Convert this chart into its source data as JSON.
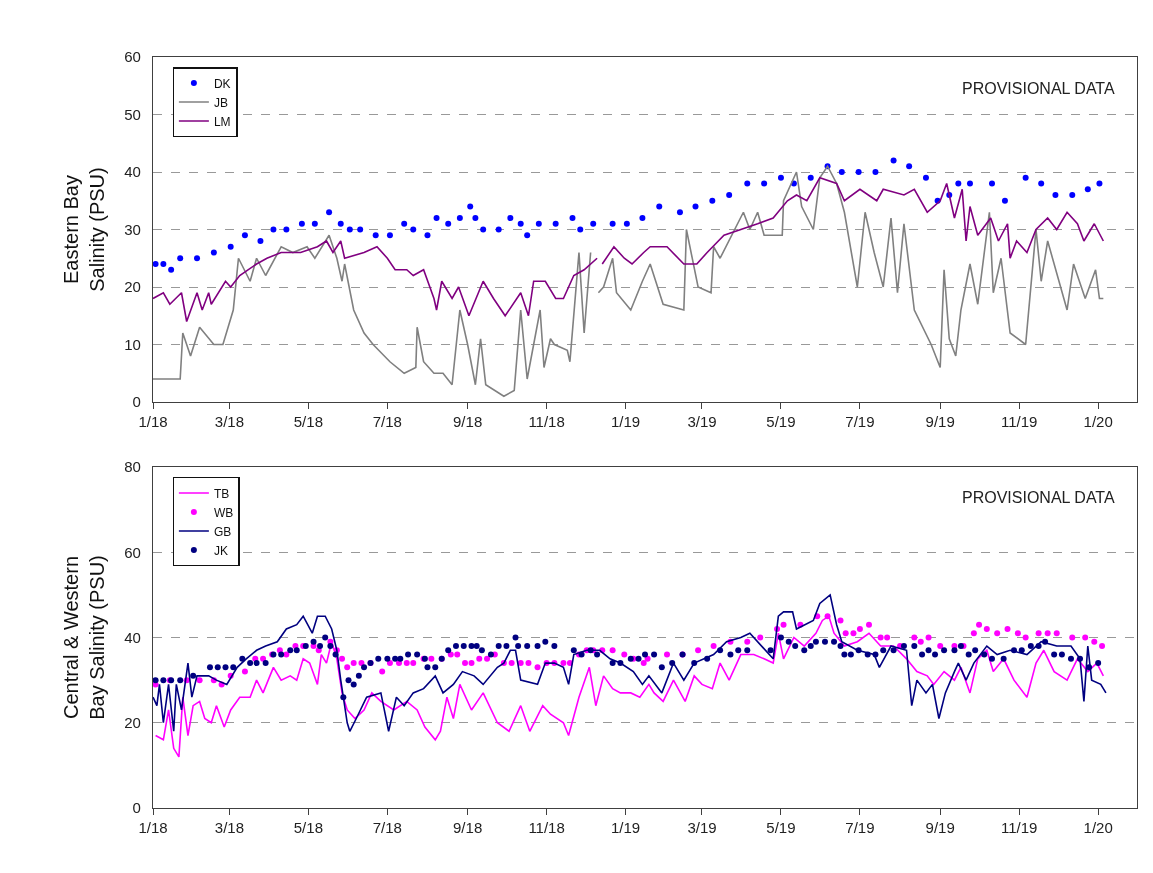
{
  "chart_data": [
    {
      "type": "line",
      "ylabel": "Eastern Bay\nSalinity (PSU)",
      "annotations": [
        "PROVISIONAL DATA"
      ],
      "legend": "top left",
      "grid": "y",
      "xlim": [
        "2018-01-01",
        "2020-01-31"
      ],
      "xticks": [
        {
          "value": "2018-01-01",
          "label": "1/18"
        },
        {
          "value": "2018-03-01",
          "label": "3/18"
        },
        {
          "value": "2018-05-01",
          "label": "5/18"
        },
        {
          "value": "2018-07-01",
          "label": "7/18"
        },
        {
          "value": "2018-09-01",
          "label": "9/18"
        },
        {
          "value": "2018-11-01",
          "label": "11/18"
        },
        {
          "value": "2019-01-01",
          "label": "1/19"
        },
        {
          "value": "2019-03-01",
          "label": "3/19"
        },
        {
          "value": "2019-05-01",
          "label": "5/19"
        },
        {
          "value": "2019-07-01",
          "label": "7/19"
        },
        {
          "value": "2019-09-01",
          "label": "9/19"
        },
        {
          "value": "2019-11-01",
          "label": "11/19"
        },
        {
          "value": "2020-01-01",
          "label": "1/20"
        }
      ],
      "ylim": [
        0,
        60
      ],
      "yticks": [
        0,
        10,
        20,
        30,
        40,
        50,
        60
      ],
      "series": [
        {
          "name": "DK",
          "type": "scatter",
          "marker": "circle",
          "color": "#0000ff",
          "x": [
            "2018-01-03",
            "2018-01-09",
            "2018-01-15",
            "2018-01-22",
            "2018-02-04",
            "2018-02-17",
            "2018-03-02",
            "2018-03-13",
            "2018-03-25",
            "2018-04-04",
            "2018-04-14",
            "2018-04-26",
            "2018-05-06",
            "2018-05-17",
            "2018-05-26",
            "2018-06-02",
            "2018-06-10",
            "2018-06-22",
            "2018-07-03",
            "2018-07-14",
            "2018-07-21",
            "2018-08-01",
            "2018-08-08",
            "2018-08-17",
            "2018-08-26",
            "2018-09-03",
            "2018-09-07",
            "2018-09-13",
            "2018-09-25",
            "2018-10-04",
            "2018-10-12",
            "2018-10-17",
            "2018-10-26",
            "2018-11-08",
            "2018-11-21",
            "2018-11-27",
            "2018-12-07",
            "2018-12-22",
            "2019-01-02",
            "2019-01-14",
            "2019-01-27",
            "2019-02-12",
            "2019-02-24",
            "2019-03-09",
            "2019-03-22",
            "2019-04-05",
            "2019-04-18",
            "2019-05-01",
            "2019-05-11",
            "2019-05-24",
            "2019-06-06",
            "2019-06-17",
            "2019-06-30",
            "2019-07-13",
            "2019-07-27",
            "2019-08-08",
            "2019-08-21",
            "2019-08-30",
            "2019-09-08",
            "2019-09-15",
            "2019-09-24",
            "2019-10-11",
            "2019-10-21",
            "2019-11-06",
            "2019-11-18",
            "2019-11-29",
            "2019-12-12",
            "2019-12-24",
            "2020-01-02"
          ],
          "values": [
            24,
            24,
            23,
            25,
            25,
            26,
            27,
            29,
            28,
            30,
            30,
            31,
            31,
            33,
            31,
            30,
            30,
            29,
            29,
            31,
            30,
            29,
            32,
            31,
            32,
            34,
            32,
            30,
            30,
            32,
            31,
            29,
            31,
            31,
            32,
            30,
            31,
            31,
            31,
            32,
            34,
            33,
            34,
            35,
            36,
            38,
            38,
            39,
            38,
            39,
            41,
            40,
            40,
            40,
            42,
            41,
            39,
            35,
            36,
            38,
            38,
            38,
            35,
            39,
            38,
            36,
            36,
            37,
            38
          ]
        },
        {
          "name": "JB",
          "color": "#808080",
          "x": [
            "2018-01-01",
            "2018-01-22",
            "2018-01-24",
            "2018-01-30",
            "2018-02-06",
            "2018-02-17",
            "2018-02-24",
            "2018-03-04",
            "2018-03-08",
            "2018-03-17",
            "2018-03-22",
            "2018-03-29",
            "2018-04-10",
            "2018-04-19",
            "2018-04-30",
            "2018-05-06",
            "2018-05-17",
            "2018-05-23",
            "2018-05-27",
            "2018-05-29",
            "2018-06-05",
            "2018-06-13",
            "2018-06-20",
            "2018-07-03",
            "2018-07-14",
            "2018-07-23",
            "2018-07-24",
            "2018-07-29",
            "2018-08-06",
            "2018-08-13",
            "2018-08-20",
            "2018-08-26",
            "2018-09-01",
            "2018-09-07",
            "2018-09-11",
            "2018-09-15",
            "2018-09-29",
            "2018-10-07",
            "2018-10-12",
            "2018-10-17",
            "2018-10-27",
            "2018-10-30",
            "2018-11-04",
            "2018-11-07",
            "2018-11-17",
            "2018-11-19",
            "2018-11-26",
            "2018-11-30",
            "2018-12-05",
            "2018-12-08",
            "2018-12-11",
            "2018-12-15",
            "2018-12-22",
            "2018-12-25",
            "2019-01-05",
            "2019-01-14",
            "2019-01-20",
            "2019-01-30",
            "2019-02-15",
            "2019-02-17",
            "2019-02-26",
            "2019-03-08",
            "2019-03-10",
            "2019-03-15",
            "2019-04-02",
            "2019-04-07",
            "2019-04-13",
            "2019-04-18",
            "2019-05-02",
            "2019-05-03",
            "2019-05-13",
            "2019-05-17",
            "2019-05-26",
            "2019-05-31",
            "2019-06-06",
            "2019-06-13",
            "2019-06-19",
            "2019-06-29",
            "2019-07-05",
            "2019-07-12",
            "2019-07-19",
            "2019-07-25",
            "2019-07-30",
            "2019-08-04",
            "2019-08-12",
            "2019-08-25",
            "2019-09-01",
            "2019-09-04",
            "2019-09-08",
            "2019-09-13",
            "2019-09-17",
            "2019-09-24",
            "2019-09-30",
            "2019-10-09",
            "2019-10-12",
            "2019-10-18",
            "2019-10-25",
            "2019-11-06",
            "2019-11-14",
            "2019-11-18",
            "2019-11-23",
            "2019-12-08",
            "2019-12-13",
            "2019-12-22",
            "2019-12-30",
            "2020-01-02",
            "2020-01-05"
          ],
          "values": [
            4,
            4,
            12,
            8,
            13,
            10,
            10,
            16,
            25,
            21,
            25,
            22,
            27,
            26,
            27,
            25,
            29,
            25,
            21,
            24,
            16,
            12,
            10,
            7,
            5,
            6,
            13,
            7,
            5,
            5,
            3,
            16,
            10,
            3,
            11,
            3,
            1,
            2,
            16,
            4,
            16,
            6,
            11,
            10,
            9,
            7,
            26,
            12,
            26,
            null,
            19,
            20,
            25,
            19,
            16,
            21,
            24,
            17,
            16,
            30,
            20,
            19,
            27,
            25,
            33,
            30,
            33,
            29,
            29,
            35,
            40,
            34,
            30,
            39,
            41,
            38,
            33,
            20,
            33,
            26,
            20,
            32,
            19,
            31,
            16,
            10,
            6,
            23,
            11,
            8,
            16,
            24,
            17,
            33,
            19,
            25,
            12,
            10,
            30,
            21,
            28,
            16,
            24,
            18,
            23,
            18,
            18
          ]
        },
        {
          "name": "LM",
          "color": "#800080",
          "x": [
            "2018-01-01",
            "2018-01-09",
            "2018-01-14",
            "2018-01-23",
            "2018-01-27",
            "2018-02-04",
            "2018-02-08",
            "2018-02-13",
            "2018-02-15",
            "2018-02-26",
            "2018-03-02",
            "2018-03-09",
            "2018-03-22",
            "2018-03-30",
            "2018-04-10",
            "2018-04-25",
            "2018-05-08",
            "2018-05-15",
            "2018-05-20",
            "2018-05-26",
            "2018-05-29",
            "2018-06-13",
            "2018-06-23",
            "2018-07-01",
            "2018-07-07",
            "2018-07-16",
            "2018-07-21",
            "2018-07-29",
            "2018-08-06",
            "2018-08-08",
            "2018-08-12",
            "2018-08-20",
            "2018-08-25",
            "2018-09-02",
            "2018-09-13",
            "2018-09-21",
            "2018-09-30",
            "2018-10-12",
            "2018-10-18",
            "2018-10-22",
            "2018-10-31",
            "2018-11-08",
            "2018-11-14",
            "2018-11-22",
            "2018-11-30",
            "2018-12-10",
            "2018-12-12",
            "2018-12-14",
            "2018-12-23",
            "2018-12-31",
            "2019-01-06",
            "2019-01-15",
            "2019-01-20",
            "2019-02-02",
            "2019-02-15",
            "2019-02-25",
            "2019-03-05",
            "2019-03-18",
            "2019-03-31",
            "2019-04-13",
            "2019-04-25",
            "2019-05-06",
            "2019-05-13",
            "2019-05-21",
            "2019-05-31",
            "2019-06-13",
            "2019-06-19",
            "2019-07-01",
            "2019-07-14",
            "2019-07-19",
            "2019-08-04",
            "2019-08-12",
            "2019-08-22",
            "2019-09-01",
            "2019-09-06",
            "2019-09-12",
            "2019-09-18",
            "2019-09-21",
            "2019-09-24",
            "2019-09-30",
            "2019-10-10",
            "2019-10-16",
            "2019-10-23",
            "2019-10-25",
            "2019-10-30",
            "2019-11-07",
            "2019-11-14",
            "2019-11-23",
            "2019-11-30",
            "2019-12-08",
            "2019-12-16",
            "2019-12-21",
            "2019-12-29",
            "2020-01-05"
          ],
          "values": [
            18,
            19,
            17,
            19,
            14,
            19,
            16,
            19,
            17,
            21,
            20,
            22,
            24,
            25,
            26,
            26,
            27,
            28,
            26,
            28,
            25,
            26,
            27,
            25,
            23,
            23,
            22,
            23,
            18,
            16,
            21,
            18,
            20,
            15,
            21,
            18,
            15,
            19,
            15,
            21,
            21,
            18,
            18,
            22,
            23,
            25,
            null,
            24,
            27,
            25,
            24,
            26,
            27,
            27,
            24,
            24,
            26,
            29,
            30,
            31,
            32,
            35,
            36,
            35,
            39,
            38,
            35,
            37,
            35,
            37,
            36,
            37,
            33,
            35,
            38,
            32,
            37,
            28,
            34,
            29,
            32,
            28,
            31,
            25,
            28,
            26,
            30,
            32,
            30,
            33,
            31,
            28,
            31,
            28
          ]
        }
      ]
    },
    {
      "type": "line",
      "ylabel": "Central & Western\nBay Salinity (PSU)",
      "annotations": [
        "PROVISIONAL DATA"
      ],
      "legend": "top left",
      "grid": "y",
      "xlim": [
        "2018-01-01",
        "2020-01-31"
      ],
      "xticks": [
        {
          "value": "2018-01-01",
          "label": "1/18"
        },
        {
          "value": "2018-03-01",
          "label": "3/18"
        },
        {
          "value": "2018-05-01",
          "label": "5/18"
        },
        {
          "value": "2018-07-01",
          "label": "7/18"
        },
        {
          "value": "2018-09-01",
          "label": "9/18"
        },
        {
          "value": "2018-11-01",
          "label": "11/18"
        },
        {
          "value": "2019-01-01",
          "label": "1/19"
        },
        {
          "value": "2019-03-01",
          "label": "3/19"
        },
        {
          "value": "2019-05-01",
          "label": "5/19"
        },
        {
          "value": "2019-07-01",
          "label": "7/19"
        },
        {
          "value": "2019-09-01",
          "label": "9/19"
        },
        {
          "value": "2019-11-01",
          "label": "11/19"
        },
        {
          "value": "2020-01-01",
          "label": "1/20"
        }
      ],
      "ylim": [
        0,
        80
      ],
      "yticks": [
        0,
        20,
        40,
        60,
        80
      ],
      "series": [
        {
          "name": "TB",
          "color": "#ff00ff",
          "x": [
            "2018-01-03",
            "2018-01-09",
            "2018-01-13",
            "2018-01-17",
            "2018-01-21",
            "2018-01-24",
            "2018-01-28",
            "2018-02-01",
            "2018-02-06",
            "2018-02-10",
            "2018-02-15",
            "2018-02-19",
            "2018-02-25",
            "2018-03-02",
            "2018-03-09",
            "2018-03-17",
            "2018-03-22",
            "2018-03-27",
            "2018-04-04",
            "2018-04-10",
            "2018-04-17",
            "2018-04-22",
            "2018-04-27",
            "2018-05-02",
            "2018-05-08",
            "2018-05-11",
            "2018-05-15",
            "2018-05-19",
            "2018-05-23",
            "2018-05-27",
            "2018-05-31",
            "2018-06-06",
            "2018-06-13",
            "2018-06-19",
            "2018-06-26",
            "2018-07-06",
            "2018-07-16",
            "2018-07-24",
            "2018-07-30",
            "2018-08-07",
            "2018-08-11",
            "2018-08-16",
            "2018-08-21",
            "2018-08-26",
            "2018-09-04",
            "2018-09-13",
            "2018-09-24",
            "2018-10-03",
            "2018-10-12",
            "2018-10-19",
            "2018-10-29",
            "2018-11-04",
            "2018-11-14",
            "2018-11-18",
            "2018-11-26",
            "2018-12-04",
            "2018-12-09",
            "2018-12-15",
            "2018-12-22",
            "2018-12-28",
            "2019-01-05",
            "2019-01-12",
            "2019-01-19",
            "2019-01-23",
            "2019-01-30",
            "2019-02-07",
            "2019-02-16",
            "2019-02-23",
            "2019-03-01",
            "2019-03-09",
            "2019-03-15",
            "2019-03-22",
            "2019-03-31",
            "2019-04-10",
            "2019-04-18",
            "2019-04-25",
            "2019-04-29",
            "2019-05-03",
            "2019-05-11",
            "2019-05-19",
            "2019-05-28",
            "2019-06-02",
            "2019-06-07",
            "2019-06-11",
            "2019-06-19",
            "2019-06-29",
            "2019-07-08",
            "2019-07-17",
            "2019-07-27",
            "2019-08-06",
            "2019-08-14",
            "2019-08-22",
            "2019-08-27",
            "2019-09-04",
            "2019-09-12",
            "2019-09-17",
            "2019-09-24",
            "2019-09-30",
            "2019-10-07",
            "2019-10-12",
            "2019-10-20",
            "2019-10-28",
            "2019-11-07",
            "2019-11-14",
            "2019-11-20",
            "2019-11-28",
            "2019-12-08",
            "2019-12-16",
            "2019-12-24",
            "2019-12-31",
            "2020-01-05"
          ],
          "values": [
            17,
            16,
            23,
            14,
            12,
            26,
            17,
            24,
            25,
            21,
            20,
            24,
            19,
            23,
            26,
            26,
            30,
            27,
            33,
            30,
            31,
            30,
            35,
            34,
            29,
            36,
            34,
            39,
            35,
            27,
            23,
            21,
            23,
            27,
            25,
            23,
            25,
            23,
            19,
            16,
            18,
            26,
            21,
            29,
            23,
            27,
            20,
            18,
            24,
            18,
            24,
            22,
            20,
            17,
            26,
            33,
            24,
            31,
            28,
            27,
            27,
            26,
            29,
            27,
            25,
            30,
            25,
            31,
            29,
            28,
            34,
            30,
            36,
            36,
            35,
            34,
            41,
            35,
            40,
            38,
            41,
            44,
            45,
            41,
            38,
            39,
            41,
            38,
            38,
            35,
            32,
            31,
            29,
            32,
            30,
            33,
            27,
            35,
            37,
            32,
            35,
            30,
            26,
            34,
            37,
            32,
            30,
            35,
            32,
            34,
            31
          ]
        },
        {
          "name": "WB",
          "type": "scatter",
          "marker": "circle",
          "color": "#ff00ff",
          "x": [
            "2018-01-03",
            "2018-01-14",
            "2018-01-27",
            "2018-02-06",
            "2018-02-17",
            "2018-02-23",
            "2018-03-02",
            "2018-03-13",
            "2018-03-21",
            "2018-03-27",
            "2018-04-03",
            "2018-04-09",
            "2018-04-14",
            "2018-04-21",
            "2018-04-27",
            "2018-05-05",
            "2018-05-09",
            "2018-05-18",
            "2018-05-23",
            "2018-05-27",
            "2018-05-31",
            "2018-06-05",
            "2018-06-11",
            "2018-06-18",
            "2018-06-27",
            "2018-07-03",
            "2018-07-10",
            "2018-07-16",
            "2018-07-21",
            "2018-07-29",
            "2018-08-04",
            "2018-08-12",
            "2018-08-19",
            "2018-08-24",
            "2018-08-30",
            "2018-09-04",
            "2018-09-10",
            "2018-09-16",
            "2018-09-22",
            "2018-09-29",
            "2018-10-05",
            "2018-10-12",
            "2018-10-18",
            "2018-10-25",
            "2018-11-01",
            "2018-11-07",
            "2018-11-14",
            "2018-11-19",
            "2018-11-26",
            "2018-12-02",
            "2018-12-07",
            "2018-12-14",
            "2018-12-22",
            "2018-12-31",
            "2019-01-07",
            "2019-01-15",
            "2019-01-18",
            "2019-02-02",
            "2019-02-14",
            "2019-02-26",
            "2019-03-10",
            "2019-03-23",
            "2019-04-05",
            "2019-04-15",
            "2019-04-28",
            "2019-05-03",
            "2019-05-16",
            "2019-05-29",
            "2019-06-06",
            "2019-06-16",
            "2019-06-20",
            "2019-06-26",
            "2019-07-01",
            "2019-07-08",
            "2019-07-17",
            "2019-07-22",
            "2019-08-01",
            "2019-08-12",
            "2019-08-17",
            "2019-08-23",
            "2019-09-01",
            "2019-09-12",
            "2019-09-19",
            "2019-09-27",
            "2019-10-01",
            "2019-10-07",
            "2019-10-15",
            "2019-10-23",
            "2019-10-31",
            "2019-11-06",
            "2019-11-16",
            "2019-11-23",
            "2019-11-30",
            "2019-12-12",
            "2019-12-22",
            "2019-12-29",
            "2020-01-04"
          ],
          "values": [
            29,
            30,
            30,
            30,
            30,
            29,
            31,
            32,
            35,
            35,
            36,
            37,
            36,
            38,
            38,
            38,
            37,
            39,
            37,
            35,
            33,
            34,
            34,
            34,
            32,
            34,
            34,
            34,
            34,
            35,
            35,
            35,
            36,
            36,
            34,
            34,
            35,
            35,
            36,
            34,
            34,
            34,
            34,
            33,
            34,
            34,
            34,
            34,
            36,
            37,
            37,
            37,
            37,
            36,
            35,
            34,
            35,
            36,
            36,
            37,
            38,
            39,
            39,
            40,
            42,
            43,
            43,
            45,
            45,
            44,
            41,
            41,
            42,
            43,
            40,
            40,
            38,
            40,
            39,
            40,
            38,
            38,
            38,
            41,
            43,
            42,
            41,
            42,
            41,
            40,
            41,
            41,
            41,
            40,
            40,
            39,
            38
          ]
        },
        {
          "name": "GB",
          "color": "#000080",
          "x": [
            "2018-01-01",
            "2018-01-04",
            "2018-01-06",
            "2018-01-09",
            "2018-01-13",
            "2018-01-17",
            "2018-01-19",
            "2018-01-23",
            "2018-01-28",
            "2018-01-31",
            "2018-02-04",
            "2018-02-13",
            "2018-02-19",
            "2018-02-27",
            "2018-03-07",
            "2018-03-14",
            "2018-03-22",
            "2018-03-29",
            "2018-04-07",
            "2018-04-14",
            "2018-04-22",
            "2018-04-27",
            "2018-05-04",
            "2018-05-08",
            "2018-05-14",
            "2018-05-19",
            "2018-05-23",
            "2018-05-26",
            "2018-05-28",
            "2018-05-31",
            "2018-06-02",
            "2018-06-07",
            "2018-06-15",
            "2018-06-26",
            "2018-07-02",
            "2018-07-08",
            "2018-07-14",
            "2018-07-21",
            "2018-07-29",
            "2018-08-07",
            "2018-08-13",
            "2018-08-21",
            "2018-08-28",
            "2018-09-06",
            "2018-09-13",
            "2018-09-24",
            "2018-09-29",
            "2018-10-04",
            "2018-10-08",
            "2018-10-12",
            "2018-10-25",
            "2018-10-31",
            "2018-11-07",
            "2018-11-14",
            "2018-11-18",
            "2018-11-22",
            "2018-12-02",
            "2018-12-12",
            "2018-12-20",
            "2018-12-28",
            "2019-01-07",
            "2019-01-14",
            "2019-01-19",
            "2019-01-29",
            "2019-02-07",
            "2019-02-15",
            "2019-02-23",
            "2019-03-10",
            "2019-03-20",
            "2019-03-31",
            "2019-04-07",
            "2019-04-25",
            "2019-04-29",
            "2019-05-03",
            "2019-05-10",
            "2019-05-13",
            "2019-05-26",
            "2019-05-31",
            "2019-06-08",
            "2019-06-13",
            "2019-06-17",
            "2019-06-29",
            "2019-07-12",
            "2019-07-16",
            "2019-07-25",
            "2019-08-06",
            "2019-08-10",
            "2019-08-14",
            "2019-08-21",
            "2019-08-26",
            "2019-08-31",
            "2019-09-05",
            "2019-09-12",
            "2019-09-15",
            "2019-09-21",
            "2019-09-27",
            "2019-10-07",
            "2019-10-15",
            "2019-10-25",
            "2019-11-07",
            "2019-11-18",
            "2019-11-30",
            "2019-12-11",
            "2019-12-18",
            "2019-12-21",
            "2019-12-24",
            "2019-12-27",
            "2020-01-03",
            "2020-01-07"
          ],
          "values": [
            26,
            24,
            29,
            20,
            29,
            18,
            29,
            23,
            34,
            26,
            31,
            31,
            30,
            29,
            33,
            35,
            37,
            38,
            39,
            42,
            43,
            45,
            41,
            45,
            45,
            42,
            37,
            30,
            26,
            20,
            18,
            21,
            26,
            27,
            18,
            26,
            24,
            27,
            28,
            31,
            27,
            29,
            32,
            31,
            29,
            33,
            34,
            37,
            37,
            30,
            29,
            34,
            34,
            33,
            29,
            36,
            37,
            37,
            35,
            34,
            32,
            29,
            31,
            27,
            34,
            30,
            34,
            36,
            39,
            40,
            41,
            35,
            45,
            46,
            46,
            42,
            44,
            48,
            50,
            43,
            39,
            37,
            36,
            33,
            38,
            37,
            24,
            30,
            27,
            29,
            21,
            27,
            32,
            34,
            30,
            34,
            38,
            36,
            37,
            36,
            39,
            38,
            38,
            35,
            25,
            38,
            30,
            29,
            27
          ]
        },
        {
          "name": "JK",
          "type": "scatter",
          "marker": "circle",
          "color": "#000080",
          "x": [
            "2018-01-03",
            "2018-01-09",
            "2018-01-15",
            "2018-01-22",
            "2018-02-01",
            "2018-02-14",
            "2018-02-20",
            "2018-02-26",
            "2018-03-04",
            "2018-03-11",
            "2018-03-17",
            "2018-03-22",
            "2018-03-29",
            "2018-04-04",
            "2018-04-10",
            "2018-04-17",
            "2018-04-22",
            "2018-04-29",
            "2018-05-05",
            "2018-05-10",
            "2018-05-14",
            "2018-05-18",
            "2018-05-22",
            "2018-05-28",
            "2018-06-01",
            "2018-06-05",
            "2018-06-09",
            "2018-06-13",
            "2018-06-18",
            "2018-06-24",
            "2018-07-01",
            "2018-07-07",
            "2018-07-11",
            "2018-07-17",
            "2018-07-24",
            "2018-07-30",
            "2018-08-01",
            "2018-08-07",
            "2018-08-12",
            "2018-08-17",
            "2018-08-23",
            "2018-08-29",
            "2018-09-04",
            "2018-09-08",
            "2018-09-12",
            "2018-09-19",
            "2018-09-25",
            "2018-10-01",
            "2018-10-08",
            "2018-10-10",
            "2018-10-17",
            "2018-10-25",
            "2018-10-31",
            "2018-11-07",
            "2018-11-22",
            "2018-11-28",
            "2018-12-05",
            "2018-12-10",
            "2018-12-22",
            "2018-12-28",
            "2019-01-05",
            "2019-01-11",
            "2019-01-16",
            "2019-01-23",
            "2019-01-29",
            "2019-02-06",
            "2019-02-14",
            "2019-02-23",
            "2019-03-05",
            "2019-03-15",
            "2019-03-23",
            "2019-03-29",
            "2019-04-05",
            "2019-04-23",
            "2019-05-01",
            "2019-05-07",
            "2019-05-12",
            "2019-05-19",
            "2019-05-24",
            "2019-05-28",
            "2019-06-04",
            "2019-06-11",
            "2019-06-16",
            "2019-06-19",
            "2019-06-24",
            "2019-06-30",
            "2019-07-07",
            "2019-07-13",
            "2019-07-19",
            "2019-07-27",
            "2019-08-04",
            "2019-08-12",
            "2019-08-18",
            "2019-08-23",
            "2019-08-28",
            "2019-09-04",
            "2019-09-12",
            "2019-09-17",
            "2019-09-23",
            "2019-09-28",
            "2019-10-05",
            "2019-10-11",
            "2019-10-20",
            "2019-10-28",
            "2019-11-03",
            "2019-11-10",
            "2019-11-16",
            "2019-11-21",
            "2019-11-28",
            "2019-12-04",
            "2019-12-11",
            "2019-12-18",
            "2019-12-25",
            "2020-01-01"
          ],
          "values": [
            30,
            30,
            30,
            30,
            31,
            33,
            33,
            33,
            33,
            35,
            34,
            34,
            34,
            36,
            36,
            37,
            37,
            38,
            39,
            38,
            40,
            38,
            36,
            26,
            30,
            29,
            31,
            33,
            34,
            35,
            35,
            35,
            35,
            36,
            36,
            35,
            33,
            33,
            35,
            37,
            38,
            38,
            38,
            38,
            37,
            36,
            38,
            38,
            40,
            38,
            38,
            38,
            39,
            38,
            37,
            36,
            37,
            36,
            34,
            34,
            35,
            35,
            36,
            36,
            33,
            34,
            36,
            34,
            35,
            37,
            36,
            37,
            37,
            37,
            40,
            39,
            38,
            37,
            38,
            39,
            39,
            39,
            38,
            36,
            36,
            37,
            36,
            36,
            37,
            37,
            38,
            38,
            36,
            37,
            36,
            37,
            37,
            38,
            36,
            37,
            36,
            35,
            35,
            37,
            37,
            38,
            38,
            39,
            36,
            36,
            35,
            35,
            33,
            34
          ]
        }
      ]
    }
  ]
}
